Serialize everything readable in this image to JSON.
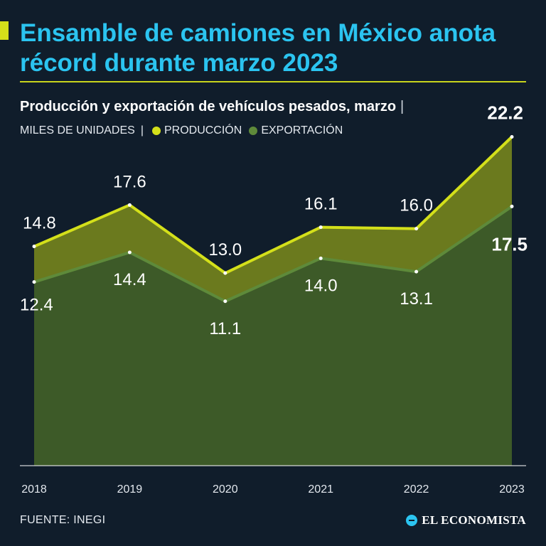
{
  "header": {
    "title": "Ensamble de camiones en México anota récord durante marzo 2023",
    "subtitle": "Producción y exportación de vehículos pesados, marzo",
    "subtitle_sep": "|",
    "units": "MILES DE UNIDADES",
    "legend_sep": "|"
  },
  "legend": {
    "production": "PRODUCCIÓN",
    "export": "EXPORTACIÓN"
  },
  "footer": {
    "source": "FUENTE: INEGI",
    "brand": "EL ECONOMISTA"
  },
  "colors": {
    "background": "#101d2b",
    "title": "#2bc4f0",
    "production_line": "#d4e01a",
    "production_fill": "#6b7a1e",
    "export_line": "#5e8a3a",
    "export_fill": "#3d5a28"
  },
  "chart_data": {
    "type": "area",
    "title": "Producción y exportación de vehículos pesados, marzo",
    "ylabel": "MILES DE UNIDADES",
    "xlabel": "",
    "categories": [
      "2018",
      "2019",
      "2020",
      "2021",
      "2022",
      "2023"
    ],
    "series": [
      {
        "name": "PRODUCCIÓN",
        "values": [
          14.8,
          17.6,
          13.0,
          16.1,
          16.0,
          22.2
        ],
        "labels": [
          "14.8",
          "17.6",
          "13.0",
          "16.1",
          "16.0",
          "22.2"
        ]
      },
      {
        "name": "EXPORTACIÓN",
        "values": [
          12.4,
          14.4,
          11.1,
          14.0,
          13.1,
          17.5
        ],
        "labels": [
          "12.4",
          "14.4",
          "11.1",
          "14.0",
          "13.1",
          "17.5"
        ]
      }
    ],
    "ylim": [
      0,
      24
    ],
    "grid": false
  }
}
